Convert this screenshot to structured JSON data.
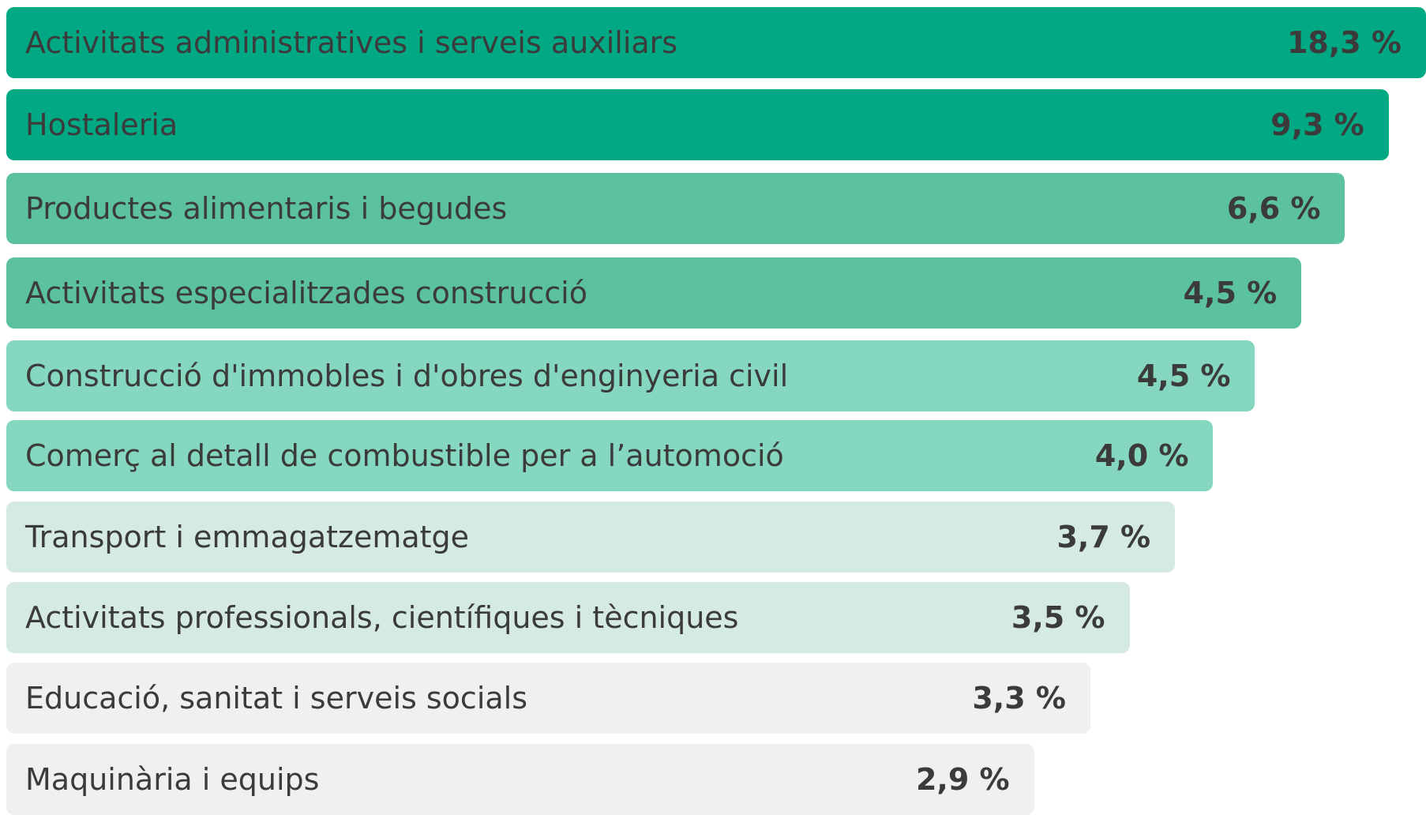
{
  "rows": [
    {
      "label": "Activitats administratives i serveis auxiliars",
      "value": "18,3 %",
      "color": "#00a884"
    },
    {
      "label": "Hostaleria",
      "value": "9,3 %",
      "color": "#00a884"
    },
    {
      "label": "Productes alimentaris i begudes",
      "value": "6,6 %",
      "color": "#5bc1a1"
    },
    {
      "label": "Activitats especialitzades construcció",
      "value": "4,5 %",
      "color": "#5bc1a1"
    },
    {
      "label": "Construcció d'immobles i d'obres d'enginyeria civil",
      "value": "4,5 %",
      "color": "#86d7c0"
    },
    {
      "label": "Comerç al detall de combustible per a l’automoció",
      "value": "4,0 %",
      "color": "#86d7c0"
    },
    {
      "label": "Transport i emmagatzematge",
      "value": "3,7 %",
      "color": "#d5ebe2"
    },
    {
      "label": "Activitats professionals, científiques i tècniques",
      "value": "3,5 %",
      "color": "#d5ebe2"
    },
    {
      "label": "Educació, sanitat i serveis socials",
      "value": "3,3 %",
      "color": "#f0f0f0"
    },
    {
      "label": "Maquinària i equips",
      "value": "2,9 %",
      "color": "#f0f0f0"
    }
  ]
}
